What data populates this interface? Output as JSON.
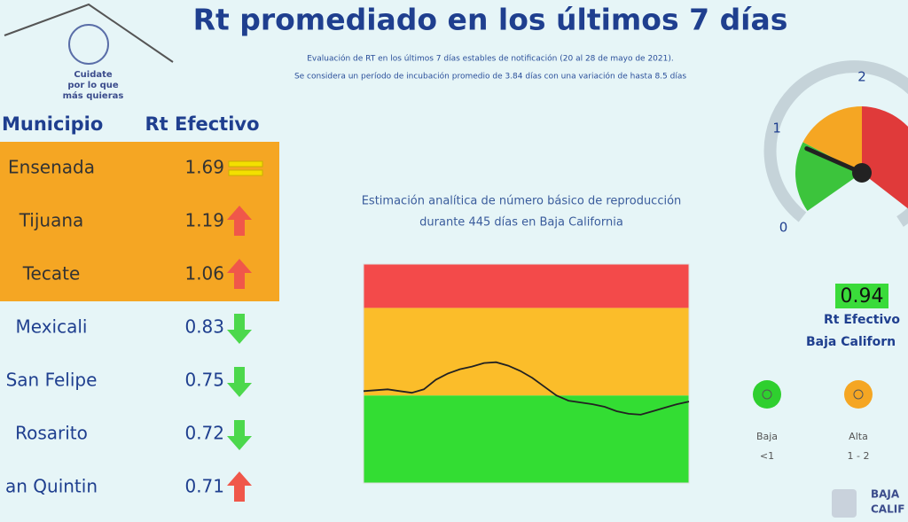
{
  "header": {
    "title": "Rt promediado en los últimos 7 días",
    "subtitle_lines": [
      "Evaluación de RT en los últimos 7 días estables de notificación (20 al 28 de mayo de 2021).",
      "Se considera un período de incubación promedio de 3.84 días con una variación de hasta 8.5 días"
    ],
    "logo_lines": [
      "Cuidate",
      "por lo que",
      "más quieras"
    ]
  },
  "table": {
    "columns": [
      "Municipio",
      "Rt Efectivo"
    ],
    "rows": [
      {
        "name": "Ensenada",
        "value": "1.69",
        "trend": "equal",
        "highlight": "#f5a623"
      },
      {
        "name": "Tijuana",
        "value": "1.19",
        "trend": "up",
        "highlight": "#f5a623"
      },
      {
        "name": "Tecate",
        "value": "1.06",
        "trend": "up",
        "highlight": "#f5a623"
      },
      {
        "name": "Mexicali",
        "value": "0.83",
        "trend": "down"
      },
      {
        "name": "San Felipe",
        "value": "0.75",
        "trend": "down"
      },
      {
        "name": "Rosarito",
        "value": "0.72",
        "trend": "down"
      },
      {
        "name": "an Quintin",
        "value": "0.71",
        "trend": "up"
      }
    ]
  },
  "chart_data": {
    "type": "line",
    "title_lines": [
      "Estimación analítica de número básico de reproducción",
      "durante 445 días en Baja California"
    ],
    "values": [
      1.05,
      1.06,
      1.07,
      1.05,
      1.03,
      1.07,
      1.18,
      1.25,
      1.3,
      1.33,
      1.37,
      1.38,
      1.34,
      1.28,
      1.2,
      1.1,
      1.0,
      0.94,
      0.92,
      0.9,
      0.87,
      0.82,
      0.79,
      0.78,
      0.82,
      0.86,
      0.9,
      0.93
    ],
    "color": "#222222",
    "ylim": [
      0,
      2.5
    ],
    "bands": [
      {
        "from": 0,
        "to": 1,
        "color": "#33dd33"
      },
      {
        "from": 1,
        "to": 2,
        "color": "#fbbd2a"
      },
      {
        "from": 2,
        "to": 2.5,
        "color": "#f34a4a"
      }
    ]
  },
  "gauge": {
    "ticks": [
      0,
      1,
      2
    ],
    "value": 0.94,
    "caption_lines": [
      "Rt Efectivo",
      "Baja Californ"
    ],
    "bands": [
      {
        "from": 0,
        "to": 1,
        "color": "#3cc43c"
      },
      {
        "from": 1,
        "to": 2,
        "color": "#f5a623"
      }
    ]
  },
  "legend": [
    {
      "label": "Baja",
      "range": "<1",
      "color": "#2fcf2f"
    },
    {
      "label": "Alta",
      "range": "1 - 2",
      "color": "#f5a623"
    }
  ],
  "footer": {
    "brand_lines": [
      "BAJA",
      "CALIF"
    ]
  }
}
